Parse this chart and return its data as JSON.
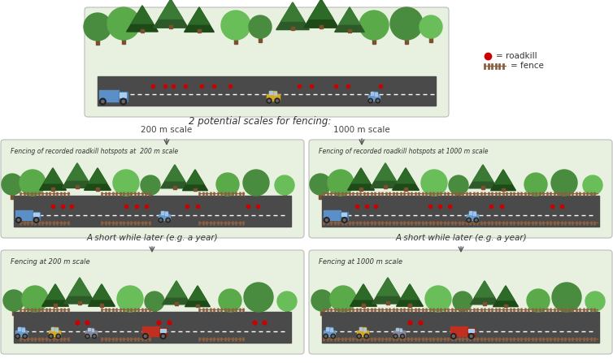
{
  "bg_color": "#ffffff",
  "panel_bg": "#e8f0e0",
  "road_color": "#4a4a4a",
  "fence_color": "#8B6040",
  "roadkill_color": "#cc0000",
  "title_top": "2 potential scales for fencing:",
  "label_200": "200 m scale",
  "label_1000": "1000 m scale",
  "p2_title": "Fencing of recorded roadkill hotspots at  200 m scale",
  "p3_title": "Fencing of recorded roadkill hotspots at 1000 m scale",
  "p4_title": "Fencing at 200 m scale",
  "p5_title": "Fencing at 1000 m scale",
  "later_text": "A short while later (e.g. a year)",
  "leg_roadkill": "= roadkill",
  "leg_fence": "= fence",
  "tree_round_dark": "#4a8c3f",
  "tree_round_med": "#5aaa4a",
  "tree_round_light": "#6abe5a",
  "tree_pine_dark": "#2d5a28",
  "tree_pine_med": "#3a7a34",
  "trunk_color": "#7a5030",
  "truck_blue": "#5b8fc7",
  "car_yellow": "#d4a820",
  "car_blue": "#6699cc",
  "car_gray": "#888899",
  "truck_red": "#c03020"
}
